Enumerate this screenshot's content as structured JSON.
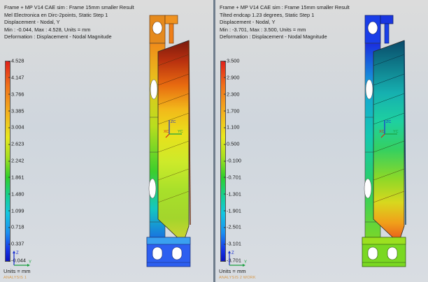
{
  "colors": {
    "accent_divider": "#6f7d8c",
    "analysis_text": "#d89a4a"
  },
  "left_view": {
    "header_lines": [
      "Frame + MP V14 CAE sim : Frame 15mm smaller Result",
      "Mel Electronica en Dirc-2points, Static Step 1",
      "Displacement - Nodal, Y",
      "Min : -0.044, Max : 4.528, Units = mm",
      "Deformation : Displacement - Nodal Magnitude"
    ],
    "legend": {
      "colormap": "blue-to-red",
      "tick_labels": [
        "4.528",
        "4.147",
        "3.766",
        "3.385",
        "3.004",
        "2.623",
        "2.242",
        "1.861",
        "1.480",
        "1.099",
        "0.718",
        "0.337",
        "-0.044"
      ]
    },
    "units_label": "Units = mm",
    "analysis_label": "ANALYSIS 1",
    "triad_icon": "wcs-triad-icon",
    "coord_icon": "csys-axes-icon",
    "coord_labels": {
      "z": "ZC",
      "x": "XC",
      "y": "YC"
    },
    "triad_labels": {
      "z": "Z",
      "y": "Y"
    }
  },
  "right_view": {
    "header_lines": [
      "Frame + MP V14 CAE sim : Frame 15mm smaller Result",
      "Tilted endcap 1.23 degrees, Static Step 1",
      "Displacement - Nodal, Y",
      "Min : -3.701, Max : 3.500, Units = mm",
      "Deformation : Displacement - Nodal Magnitude"
    ],
    "legend": {
      "colormap": "blue-to-red",
      "tick_labels": [
        "3.500",
        "2.900",
        "2.300",
        "1.700",
        "1.100",
        "0.500",
        "-0.100",
        "-0.701",
        "-1.301",
        "-1.901",
        "-2.501",
        "-3.101",
        "-3.701"
      ]
    },
    "units_label": "Units = mm",
    "analysis_label": "ANALYSIS 2 WORK",
    "triad_icon": "wcs-triad-icon",
    "coord_icon": "csys-axes-icon",
    "coord_labels": {
      "z": "ZC",
      "x": "XC",
      "y": "YC"
    },
    "triad_labels": {
      "z": "Z",
      "y": "Y"
    }
  }
}
